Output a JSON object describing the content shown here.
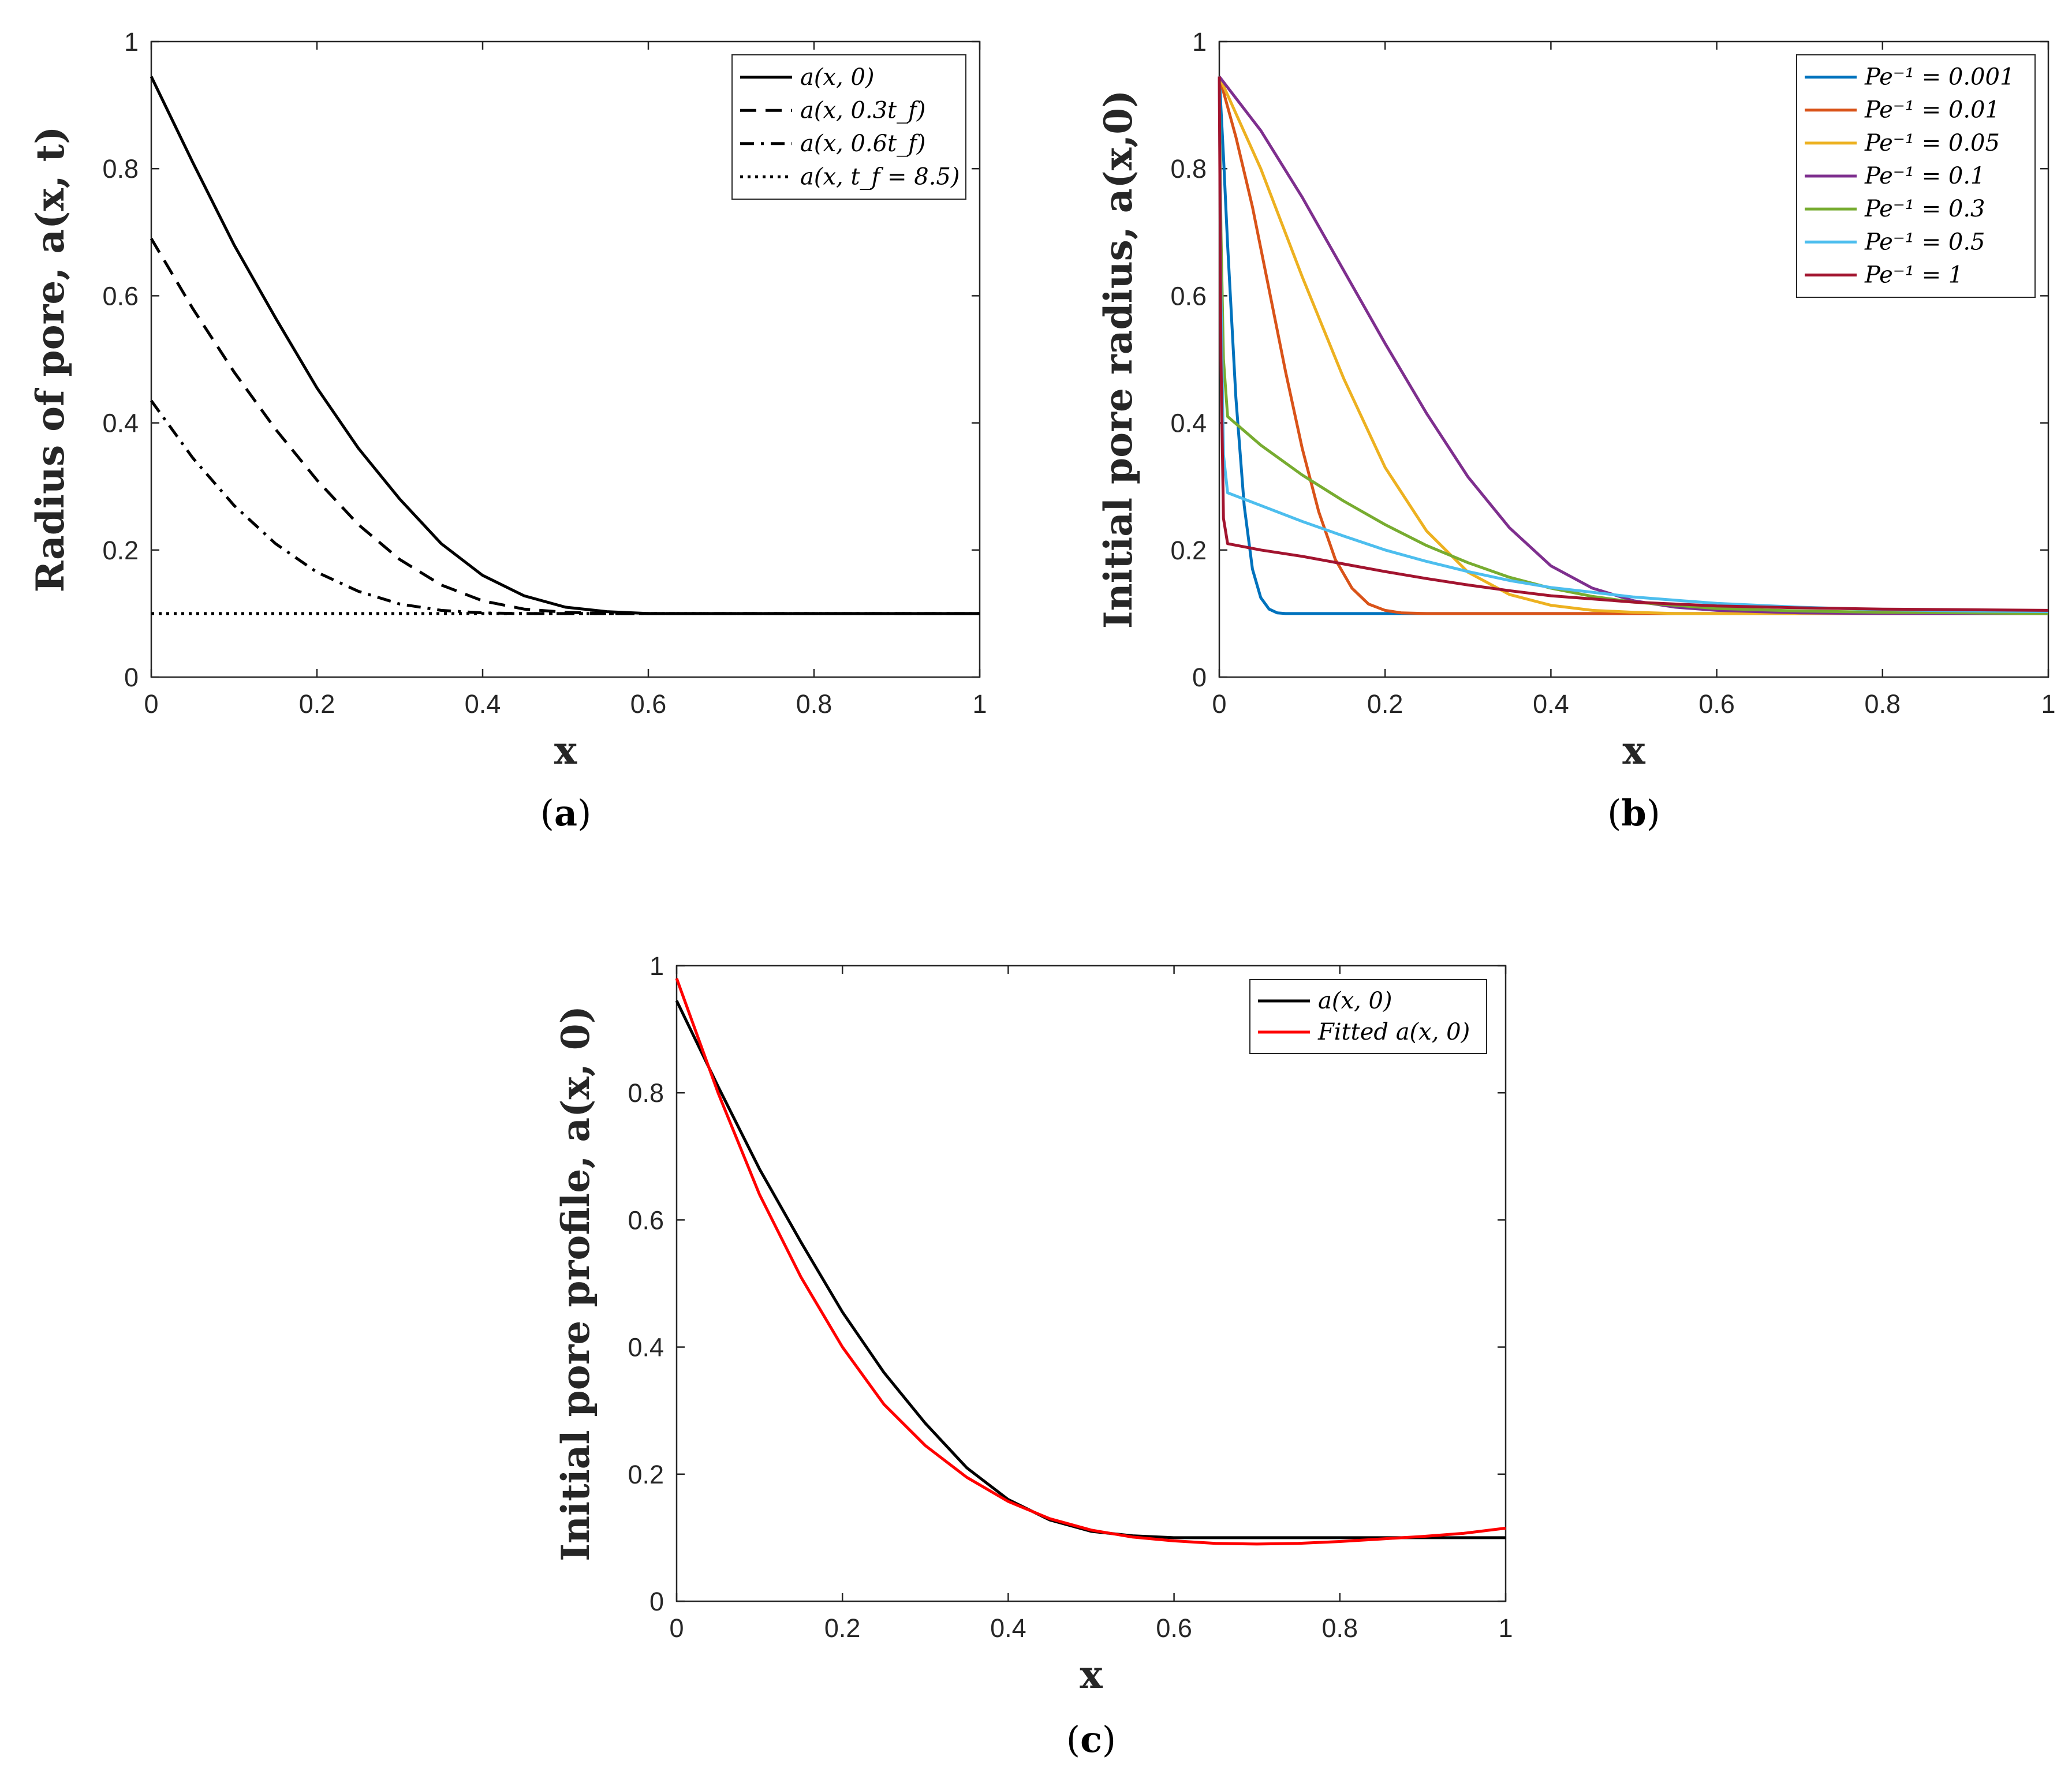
{
  "chart_data": [
    {
      "id": "a",
      "type": "line",
      "panel_label": "a",
      "xlabel": "x",
      "ylabel": "Radius of pore, a(x, t)",
      "xlim": [
        0,
        1
      ],
      "ylim": [
        0,
        1
      ],
      "xticks": [
        "0",
        "0.2",
        "0.4",
        "0.6",
        "0.8",
        "1"
      ],
      "yticks": [
        "0",
        "0.2",
        "0.4",
        "0.6",
        "0.8",
        "1"
      ],
      "legend_position": "top-right",
      "series": [
        {
          "name": "a(x, 0)",
          "color": "#000000",
          "style": "solid",
          "x": [
            0,
            0.05,
            0.1,
            0.15,
            0.2,
            0.25,
            0.3,
            0.35,
            0.4,
            0.45,
            0.5,
            0.55,
            0.6,
            0.7,
            0.8,
            0.9,
            1.0
          ],
          "y": [
            0.945,
            0.81,
            0.68,
            0.565,
            0.455,
            0.36,
            0.28,
            0.21,
            0.16,
            0.128,
            0.11,
            0.103,
            0.1,
            0.1,
            0.1,
            0.1,
            0.1
          ]
        },
        {
          "name": "a(x, 0.3t_f)",
          "color": "#000000",
          "style": "dashed",
          "x": [
            0,
            0.05,
            0.1,
            0.15,
            0.2,
            0.25,
            0.3,
            0.35,
            0.4,
            0.45,
            0.5,
            0.55,
            0.6,
            0.7,
            0.8,
            0.9,
            1.0
          ],
          "y": [
            0.69,
            0.58,
            0.48,
            0.39,
            0.31,
            0.24,
            0.185,
            0.145,
            0.12,
            0.107,
            0.102,
            0.1,
            0.1,
            0.1,
            0.1,
            0.1,
            0.1
          ]
        },
        {
          "name": "a(x, 0.6t_f)",
          "color": "#000000",
          "style": "dashdot",
          "x": [
            0,
            0.05,
            0.1,
            0.15,
            0.2,
            0.25,
            0.3,
            0.35,
            0.4,
            0.45,
            0.5,
            0.55,
            0.6,
            0.7,
            0.8,
            0.9,
            1.0
          ],
          "y": [
            0.435,
            0.345,
            0.27,
            0.21,
            0.165,
            0.135,
            0.115,
            0.105,
            0.101,
            0.1,
            0.1,
            0.1,
            0.1,
            0.1,
            0.1,
            0.1,
            0.1
          ]
        },
        {
          "name": "a(x, t_f = 8.5)",
          "color": "#000000",
          "style": "dotted",
          "x": [
            0,
            0.25,
            0.5,
            0.75,
            1.0
          ],
          "y": [
            0.1,
            0.1,
            0.1,
            0.1,
            0.1
          ]
        }
      ]
    },
    {
      "id": "b",
      "type": "line",
      "panel_label": "b",
      "xlabel": "x",
      "ylabel": "Initial pore radius, a(x,0)",
      "xlim": [
        0,
        1
      ],
      "ylim": [
        0,
        1
      ],
      "xticks": [
        "0",
        "0.2",
        "0.4",
        "0.6",
        "0.8",
        "1"
      ],
      "yticks": [
        "0",
        "0.2",
        "0.4",
        "0.6",
        "0.8",
        "1"
      ],
      "legend_position": "top-right",
      "series": [
        {
          "name": "Pe⁻¹ = 0.001",
          "color": "#0072BD",
          "style": "solid",
          "x": [
            0,
            0.005,
            0.01,
            0.02,
            0.03,
            0.04,
            0.05,
            0.06,
            0.07,
            0.08,
            0.1,
            0.2,
            0.4,
            0.6,
            0.8,
            1.0
          ],
          "y": [
            0.945,
            0.82,
            0.68,
            0.44,
            0.27,
            0.17,
            0.125,
            0.107,
            0.101,
            0.1,
            0.1,
            0.1,
            0.1,
            0.1,
            0.1,
            0.1
          ]
        },
        {
          "name": "Pe⁻¹ = 0.01",
          "color": "#D95319",
          "style": "solid",
          "x": [
            0,
            0.02,
            0.04,
            0.06,
            0.08,
            0.1,
            0.12,
            0.14,
            0.16,
            0.18,
            0.2,
            0.22,
            0.25,
            0.3,
            0.4,
            0.6,
            0.8,
            1.0
          ],
          "y": [
            0.945,
            0.85,
            0.74,
            0.61,
            0.48,
            0.36,
            0.26,
            0.185,
            0.14,
            0.115,
            0.105,
            0.101,
            0.1,
            0.1,
            0.1,
            0.1,
            0.1,
            0.1
          ]
        },
        {
          "name": "Pe⁻¹ = 0.05",
          "color": "#EDB120",
          "style": "solid",
          "x": [
            0,
            0.05,
            0.1,
            0.15,
            0.2,
            0.25,
            0.3,
            0.35,
            0.4,
            0.45,
            0.5,
            0.55,
            0.6,
            0.8,
            1.0
          ],
          "y": [
            0.945,
            0.8,
            0.63,
            0.47,
            0.33,
            0.23,
            0.165,
            0.13,
            0.113,
            0.105,
            0.102,
            0.1,
            0.1,
            0.1,
            0.1
          ]
        },
        {
          "name": "Pe⁻¹ = 0.1",
          "color": "#7E2F8E",
          "style": "solid",
          "x": [
            0,
            0.05,
            0.1,
            0.15,
            0.2,
            0.25,
            0.3,
            0.35,
            0.4,
            0.45,
            0.5,
            0.55,
            0.6,
            0.7,
            0.8,
            0.9,
            1.0
          ],
          "y": [
            0.945,
            0.86,
            0.755,
            0.64,
            0.525,
            0.415,
            0.315,
            0.235,
            0.175,
            0.14,
            0.12,
            0.11,
            0.105,
            0.101,
            0.1,
            0.1,
            0.1
          ]
        },
        {
          "name": "Pe⁻¹ = 0.3",
          "color": "#77AC30",
          "style": "solid",
          "x": [
            0,
            0.002,
            0.005,
            0.01,
            0.05,
            0.1,
            0.15,
            0.2,
            0.25,
            0.3,
            0.35,
            0.4,
            0.45,
            0.5,
            0.6,
            0.7,
            0.8,
            0.9,
            1.0
          ],
          "y": [
            0.945,
            0.7,
            0.5,
            0.41,
            0.365,
            0.318,
            0.277,
            0.24,
            0.207,
            0.18,
            0.157,
            0.14,
            0.127,
            0.118,
            0.108,
            0.104,
            0.102,
            0.101,
            0.1
          ]
        },
        {
          "name": "Pe⁻¹ = 0.5",
          "color": "#4DBEEE",
          "style": "solid",
          "x": [
            0,
            0.002,
            0.005,
            0.01,
            0.05,
            0.1,
            0.15,
            0.2,
            0.25,
            0.3,
            0.35,
            0.4,
            0.5,
            0.6,
            0.7,
            0.8,
            0.9,
            1.0
          ],
          "y": [
            0.945,
            0.6,
            0.35,
            0.29,
            0.27,
            0.245,
            0.222,
            0.2,
            0.182,
            0.166,
            0.152,
            0.141,
            0.126,
            0.116,
            0.11,
            0.106,
            0.104,
            0.103
          ]
        },
        {
          "name": "Pe⁻¹ = 1",
          "color": "#A2142F",
          "style": "solid",
          "x": [
            0,
            0.002,
            0.005,
            0.01,
            0.05,
            0.1,
            0.15,
            0.2,
            0.25,
            0.3,
            0.35,
            0.4,
            0.5,
            0.6,
            0.7,
            0.8,
            0.9,
            1.0
          ],
          "y": [
            0.945,
            0.5,
            0.25,
            0.21,
            0.2,
            0.19,
            0.178,
            0.166,
            0.155,
            0.145,
            0.136,
            0.128,
            0.118,
            0.112,
            0.109,
            0.107,
            0.106,
            0.105
          ]
        }
      ]
    },
    {
      "id": "c",
      "type": "line",
      "panel_label": "c",
      "xlabel": "x",
      "ylabel": "Initial pore profile, a(x, 0)",
      "xlim": [
        0,
        1
      ],
      "ylim": [
        0,
        1
      ],
      "xticks": [
        "0",
        "0.2",
        "0.4",
        "0.6",
        "0.8",
        "1"
      ],
      "yticks": [
        "0",
        "0.2",
        "0.4",
        "0.6",
        "0.8",
        "1"
      ],
      "legend_position": "top-right",
      "series": [
        {
          "name": "a(x, 0)",
          "color": "#000000",
          "style": "solid",
          "x": [
            0,
            0.05,
            0.1,
            0.15,
            0.2,
            0.25,
            0.3,
            0.35,
            0.4,
            0.45,
            0.5,
            0.55,
            0.6,
            0.7,
            0.8,
            0.9,
            1.0
          ],
          "y": [
            0.945,
            0.81,
            0.68,
            0.565,
            0.455,
            0.36,
            0.28,
            0.21,
            0.16,
            0.128,
            0.11,
            0.103,
            0.1,
            0.1,
            0.1,
            0.1,
            0.1
          ]
        },
        {
          "name": "Fitted a(x, 0)",
          "color": "#FF0000",
          "style": "solid",
          "x": [
            0,
            0.05,
            0.1,
            0.15,
            0.2,
            0.25,
            0.3,
            0.35,
            0.4,
            0.45,
            0.5,
            0.55,
            0.6,
            0.65,
            0.7,
            0.75,
            0.8,
            0.85,
            0.9,
            0.95,
            1.0
          ],
          "y": [
            0.98,
            0.8,
            0.64,
            0.51,
            0.4,
            0.31,
            0.245,
            0.195,
            0.157,
            0.13,
            0.112,
            0.101,
            0.095,
            0.091,
            0.09,
            0.091,
            0.094,
            0.098,
            0.102,
            0.107,
            0.115
          ]
        }
      ]
    }
  ]
}
